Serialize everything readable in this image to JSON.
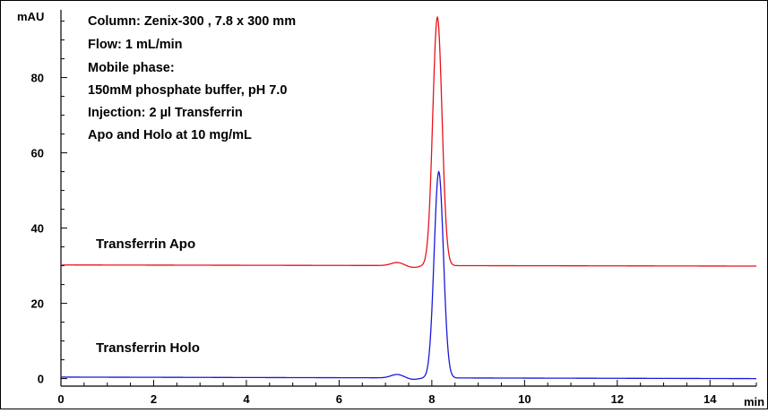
{
  "chart_data": {
    "type": "line",
    "y_unit": "mAU",
    "x_unit": "min",
    "xlim": [
      0,
      15
    ],
    "ylim": [
      -2,
      98
    ],
    "x_ticks": [
      0,
      2,
      4,
      6,
      8,
      10,
      12,
      14
    ],
    "x_tick_labels": [
      "0",
      "2",
      "4",
      "6",
      "8",
      "10",
      "12",
      "14"
    ],
    "y_ticks": [
      0,
      20,
      40,
      60,
      80
    ],
    "y_tick_labels": [
      "0",
      "20",
      "40",
      "60",
      "80"
    ],
    "x_minor_step": 0.5,
    "y_minor_step": 5,
    "grid": false,
    "annotation_lines": [
      "Column: Zenix-300 , 7.8 x 300 mm",
      "Flow: 1 mL/min",
      "Mobile phase:",
      "150mM phosphate buffer, pH 7.0",
      "Injection:  2 µl Transferrin",
      "Apo and Holo at 10 mg/mL"
    ],
    "series": [
      {
        "name": "Transferrin Apo",
        "color": "#e8141c",
        "baseline_start": 30.2,
        "baseline_end": 29.9,
        "peaks": [
          {
            "retention_time": 8.12,
            "height": 66.0,
            "sigma": 0.1
          },
          {
            "retention_time": 7.25,
            "height": 0.8,
            "sigma": 0.13
          }
        ],
        "dip": {
          "retention_time": 7.6,
          "depth": -0.5,
          "sigma": 0.12
        }
      },
      {
        "name": "Transferrin Holo",
        "color": "#1a1adb",
        "baseline_start": 0.4,
        "baseline_end": 0.0,
        "peaks": [
          {
            "retention_time": 8.15,
            "height": 54.8,
            "sigma": 0.1
          },
          {
            "retention_time": 7.25,
            "height": 0.9,
            "sigma": 0.13
          }
        ],
        "dip": {
          "retention_time": 7.6,
          "depth": -0.4,
          "sigma": 0.12
        }
      }
    ]
  }
}
